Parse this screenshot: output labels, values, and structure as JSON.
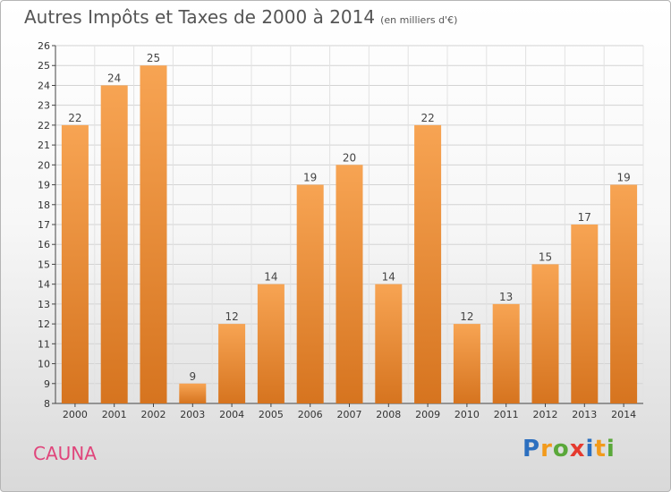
{
  "header": {
    "title": "Autres Impôts et Taxes de 2000 à 2014",
    "subtitle": "(en milliers d'€)"
  },
  "commune": "CAUNA",
  "logo": {
    "letters": [
      "P",
      "r",
      "o",
      "x",
      "i",
      "t",
      "i"
    ],
    "colors": [
      "#2c6fbf",
      "#f29a1b",
      "#5aa83a",
      "#e53a2f",
      "#2c6fbf",
      "#f29a1b",
      "#5aa83a"
    ]
  },
  "chart_data": {
    "type": "bar",
    "title": "Autres Impôts et Taxes de 2000 à 2014",
    "categories": [
      "2000",
      "2001",
      "2002",
      "2003",
      "2004",
      "2005",
      "2006",
      "2007",
      "2008",
      "2009",
      "2010",
      "2011",
      "2012",
      "2013",
      "2014"
    ],
    "values": [
      22,
      24,
      25,
      9,
      12,
      14,
      19,
      20,
      14,
      22,
      12,
      13,
      15,
      17,
      19
    ],
    "ylim": [
      8,
      26
    ],
    "yticks": [
      8,
      9,
      10,
      11,
      12,
      13,
      14,
      15,
      16,
      17,
      18,
      19,
      20,
      21,
      22,
      23,
      24,
      25,
      26
    ],
    "grid": true,
    "bar_color": "#f09a40"
  }
}
